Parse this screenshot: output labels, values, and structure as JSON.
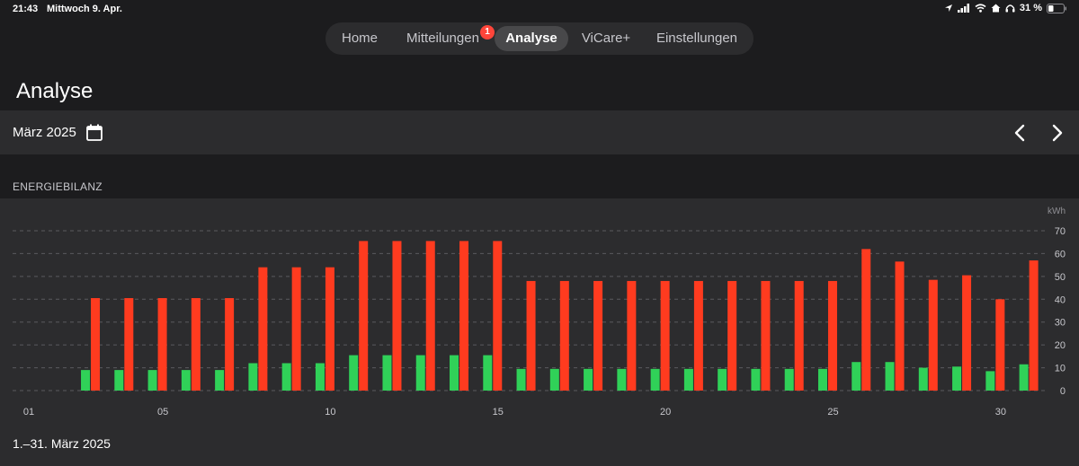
{
  "status": {
    "time": "21:43",
    "date": "Mittwoch 9. Apr.",
    "battery": "31 %"
  },
  "tabs": [
    {
      "label": "Home"
    },
    {
      "label": "Mitteilungen",
      "badge": "1"
    },
    {
      "label": "Analyse",
      "active": true
    },
    {
      "label": "ViCare+"
    },
    {
      "label": "Einstellungen"
    }
  ],
  "page": {
    "title": "Analyse",
    "month": "März 2025",
    "section": "ENERGIEBILANZ",
    "range": "1.–31. März 2025"
  },
  "icons": {
    "calendar": "calendar-icon",
    "prev": "chevron-left-icon",
    "next": "chevron-right-icon"
  },
  "colors": {
    "green": "#30d158",
    "red": "#ff3b1f"
  },
  "chart_data": {
    "type": "bar",
    "unit": "kWh",
    "ylim": [
      0,
      70
    ],
    "yticks": [
      "70",
      "60",
      "50",
      "40",
      "30",
      "20",
      "10",
      "0"
    ],
    "xticks": [
      {
        "day": 1,
        "label": "01"
      },
      {
        "day": 5,
        "label": "05"
      },
      {
        "day": 10,
        "label": "10"
      },
      {
        "day": 15,
        "label": "15"
      },
      {
        "day": 20,
        "label": "20"
      },
      {
        "day": 25,
        "label": "25"
      },
      {
        "day": 30,
        "label": "30"
      }
    ],
    "days": [
      1,
      2,
      3,
      4,
      5,
      6,
      7,
      8,
      9,
      10,
      11,
      12,
      13,
      14,
      15,
      16,
      17,
      18,
      19,
      20,
      21,
      22,
      23,
      24,
      25,
      26,
      27,
      28,
      29,
      30,
      31
    ],
    "series": [
      {
        "color": "#30d158",
        "values": [
          null,
          null,
          9,
          9,
          9,
          9,
          9,
          12,
          12,
          12,
          15.5,
          15.5,
          15.5,
          15.5,
          15.5,
          9.5,
          9.5,
          9.5,
          9.5,
          9.5,
          9.5,
          9.5,
          9.5,
          9.5,
          9.5,
          12.5,
          12.5,
          10,
          10.5,
          8.5,
          11.5
        ]
      },
      {
        "color": "#ff3b1f",
        "values": [
          null,
          null,
          40.5,
          40.5,
          40.5,
          40.5,
          40.5,
          54,
          54,
          54,
          65.5,
          65.5,
          65.5,
          65.5,
          65.5,
          48,
          48,
          48,
          48,
          48,
          48,
          48,
          48,
          48,
          48,
          62,
          56.5,
          48.5,
          50.5,
          40,
          57
        ]
      }
    ],
    "grid": true
  }
}
